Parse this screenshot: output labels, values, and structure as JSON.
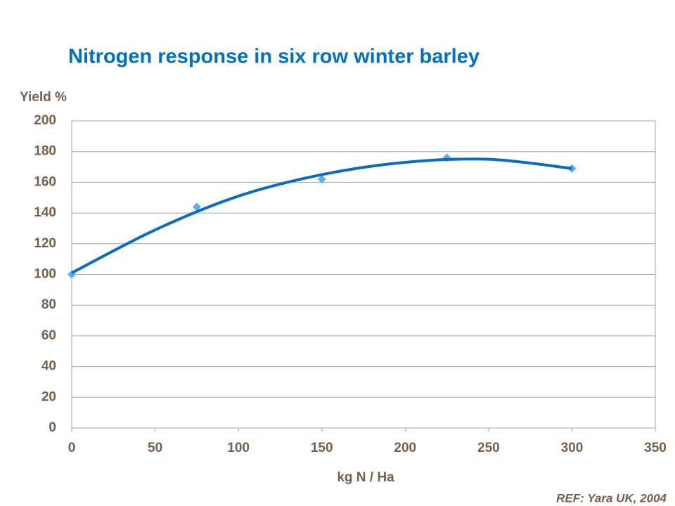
{
  "chart_data": {
    "type": "scatter",
    "title": "Nitrogen response in six row winter barley",
    "y_label": "Yield %",
    "x_label": "kg N / Ha",
    "note": "REF: Yara UK, 2004",
    "series": [
      {
        "x": [
          0,
          75,
          150,
          225,
          300
        ],
        "values": [
          100,
          144,
          162,
          176,
          169
        ],
        "color": "#5aaef0",
        "marker": "diamond"
      },
      {
        "x": [
          0,
          50,
          100,
          150,
          200,
          250,
          300
        ],
        "values": [
          101,
          129,
          151,
          165,
          173,
          175,
          169
        ],
        "color": "#0b6cbf",
        "style": "smooth-line"
      }
    ],
    "xlim": [
      0,
      350
    ],
    "xticks": [
      0,
      50,
      100,
      150,
      200,
      250,
      300,
      350
    ],
    "ylim": [
      0,
      200
    ],
    "yticks": [
      0,
      20,
      40,
      60,
      80,
      100,
      120,
      140,
      160,
      180,
      200
    ],
    "grid": true
  }
}
